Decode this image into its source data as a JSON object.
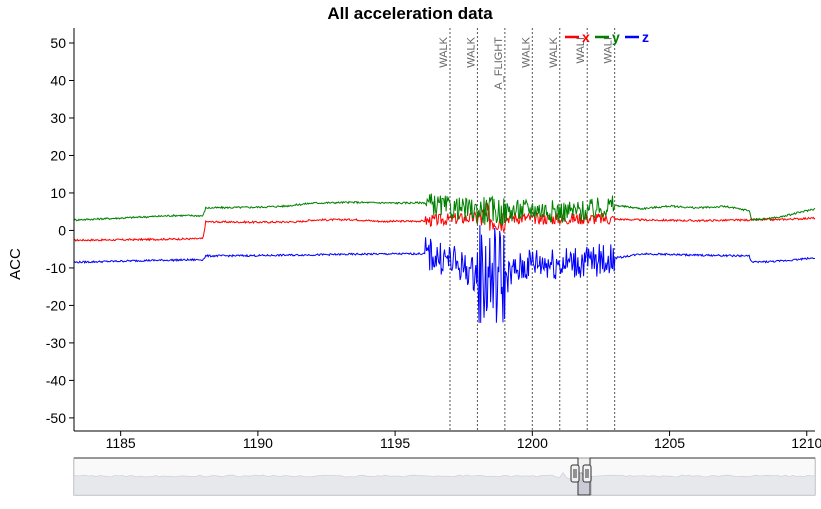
{
  "chart_data": {
    "type": "line",
    "title": "All acceleration data",
    "xlabel": "",
    "ylabel": "ACC",
    "xlim": [
      1183.3,
      1210.3
    ],
    "ylim": [
      -53.5,
      54
    ],
    "x_ticks": [
      1185,
      1190,
      1195,
      1200,
      1205,
      1210
    ],
    "y_ticks": [
      50,
      40,
      30,
      20,
      10,
      0,
      -10,
      -20,
      -30,
      -40,
      -50
    ],
    "grid": false,
    "legend_position": "top-right",
    "legend": [
      {
        "name": "x",
        "color": "#ff0000"
      },
      {
        "name": "y",
        "color": "#008000"
      },
      {
        "name": "z",
        "color": "#0000ff"
      }
    ],
    "event_markers": [
      {
        "x": 1197.0,
        "label": "WALK"
      },
      {
        "x": 1198.0,
        "label": "WALK"
      },
      {
        "x": 1199.0,
        "label": "A_FLIGHT"
      },
      {
        "x": 1200.0,
        "label": "WALK"
      },
      {
        "x": 1201.0,
        "label": "WALK"
      },
      {
        "x": 1202.0,
        "label": "WALI"
      },
      {
        "x": 1203.0,
        "label": "WALI"
      }
    ],
    "series": [
      {
        "name": "x",
        "color": "#ff0000",
        "points": [
          [
            1183.3,
            -2.6
          ],
          [
            1185.0,
            -2.5
          ],
          [
            1188.0,
            -2.2
          ],
          [
            1188.1,
            2.3
          ],
          [
            1190.0,
            2.2
          ],
          [
            1191.5,
            2.3
          ],
          [
            1192.0,
            2.8
          ],
          [
            1193.5,
            2.9
          ],
          [
            1194.5,
            2.4
          ],
          [
            1196.1,
            2.5
          ],
          [
            1197.0,
            3.0
          ],
          [
            1198.0,
            3.4
          ],
          [
            1199.0,
            3.5
          ],
          [
            1200.0,
            3.2
          ],
          [
            1201.0,
            3.1
          ],
          [
            1202.0,
            3.2
          ],
          [
            1203.0,
            3.0
          ],
          [
            1204.0,
            2.8
          ],
          [
            1206.0,
            2.6
          ],
          [
            1208.0,
            2.8
          ],
          [
            1209.0,
            2.9
          ],
          [
            1210.3,
            3.3
          ]
        ]
      },
      {
        "name": "y",
        "color": "#008000",
        "points": [
          [
            1183.3,
            2.8
          ],
          [
            1185.0,
            3.3
          ],
          [
            1187.0,
            4.0
          ],
          [
            1188.0,
            3.9
          ],
          [
            1188.1,
            6.0
          ],
          [
            1190.0,
            6.2
          ],
          [
            1191.0,
            6.5
          ],
          [
            1192.0,
            7.3
          ],
          [
            1193.5,
            7.5
          ],
          [
            1195.0,
            7.3
          ],
          [
            1196.1,
            7.4
          ],
          [
            1197.0,
            6.0
          ],
          [
            1198.0,
            5.5
          ],
          [
            1199.0,
            5.0
          ],
          [
            1200.0,
            5.8
          ],
          [
            1201.0,
            5.0
          ],
          [
            1202.0,
            5.2
          ],
          [
            1203.0,
            6.7
          ],
          [
            1204.0,
            5.8
          ],
          [
            1205.0,
            6.5
          ],
          [
            1206.0,
            6.0
          ],
          [
            1207.0,
            6.4
          ],
          [
            1207.9,
            5.3
          ],
          [
            1208.0,
            2.8
          ],
          [
            1209.0,
            3.5
          ],
          [
            1210.3,
            5.8
          ]
        ]
      },
      {
        "name": "z",
        "color": "#0000ff",
        "points": [
          [
            1183.3,
            -8.5
          ],
          [
            1186.0,
            -8.0
          ],
          [
            1188.0,
            -7.8
          ],
          [
            1188.1,
            -6.8
          ],
          [
            1190.0,
            -6.7
          ],
          [
            1192.0,
            -6.5
          ],
          [
            1194.0,
            -6.3
          ],
          [
            1196.1,
            -6.2
          ],
          [
            1197.0,
            -8.0
          ],
          [
            1198.0,
            -12.0
          ],
          [
            1199.0,
            -12.5
          ],
          [
            1200.0,
            -8.5
          ],
          [
            1201.0,
            -8.7
          ],
          [
            1202.0,
            -8.5
          ],
          [
            1203.0,
            -7.4
          ],
          [
            1204.0,
            -6.2
          ],
          [
            1206.0,
            -6.6
          ],
          [
            1207.9,
            -6.8
          ],
          [
            1208.0,
            -8.5
          ],
          [
            1209.0,
            -8.2
          ],
          [
            1210.3,
            -7.3
          ]
        ]
      }
    ]
  }
}
